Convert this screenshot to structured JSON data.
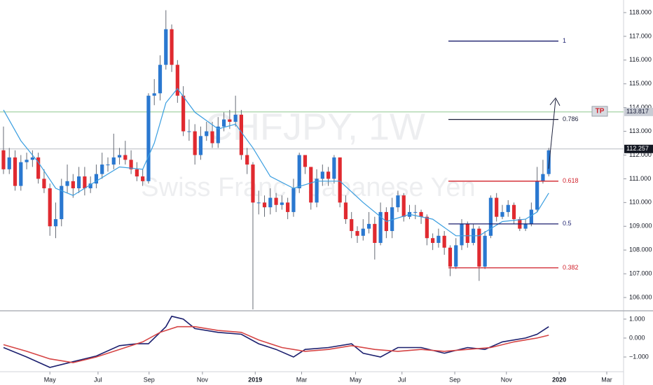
{
  "chart_data": [
    {
      "type": "candlestick",
      "title": "CHFJPY, 1W",
      "subtitle": "Swiss Franc / Japanese Yen",
      "x": [
        0,
        1,
        2,
        3,
        4,
        5,
        6,
        7,
        8,
        9,
        10,
        11,
        12,
        13,
        14,
        15,
        16,
        17,
        18,
        19,
        20,
        21,
        22,
        23,
        24,
        25,
        26,
        27,
        28,
        29,
        30,
        31,
        32,
        33,
        34,
        35,
        36,
        37,
        38,
        39,
        40,
        41,
        42,
        43,
        44,
        45,
        46,
        47,
        48,
        49,
        50,
        51,
        52,
        53,
        54,
        55,
        56,
        57,
        58,
        59,
        60,
        61,
        62,
        63,
        64,
        65,
        66,
        67,
        68,
        69,
        70,
        71,
        72,
        73,
        74,
        75,
        76,
        77,
        78,
        79,
        80,
        81,
        82,
        83,
        84,
        85,
        86,
        87,
        88,
        89,
        90,
        91,
        92,
        93,
        94
      ],
      "open": [
        112.2,
        111.4,
        111.9,
        110.7,
        111.7,
        111.8,
        111.9,
        111.0,
        110.6,
        109.0,
        109.3,
        110.7,
        110.9,
        110.6,
        111.1,
        110.6,
        110.8,
        111.2,
        111.6,
        111.6,
        111.9,
        112.0,
        111.8,
        111.4,
        111.1,
        110.9,
        114.5,
        114.6,
        115.8,
        117.3,
        115.8,
        114.5,
        113.0,
        113.0,
        112.0,
        112.8,
        113.0,
        112.5,
        113.2,
        113.5,
        113.4,
        113.7,
        112.0,
        111.6,
        110.0,
        110.0,
        109.8,
        110.2,
        109.9,
        110.0,
        109.6,
        110.6,
        112.0,
        111.5,
        110.0,
        111.0,
        111.3,
        111.0,
        111.9,
        110.0,
        109.3,
        108.8,
        108.6,
        108.9,
        109.1,
        108.3,
        109.6,
        108.8,
        109.8,
        110.3,
        109.4,
        109.6,
        109.6,
        109.4,
        108.5,
        108.3,
        108.6,
        108.1,
        107.3,
        108.2,
        109.1,
        108.3,
        108.9,
        107.3,
        108.6,
        110.2,
        109.4,
        109.6,
        109.9,
        109.3,
        108.9,
        109.1,
        109.7,
        110.9,
        111.2
      ],
      "high": [
        113.2,
        112.3,
        112.2,
        112.0,
        112.1,
        112.2,
        112.1,
        111.4,
        110.8,
        110.0,
        111.0,
        111.6,
        111.2,
        111.5,
        111.5,
        111.1,
        111.6,
        112.1,
        111.9,
        112.9,
        112.3,
        112.6,
        112.2,
        111.7,
        111.4,
        114.6,
        115.2,
        116.2,
        118.1,
        117.5,
        116.0,
        114.9,
        113.5,
        113.3,
        113.2,
        113.4,
        113.4,
        113.6,
        113.8,
        113.9,
        114.5,
        113.9,
        112.3,
        111.7,
        110.5,
        110.3,
        110.6,
        110.4,
        110.3,
        110.2,
        111.0,
        112.1,
        112.0,
        111.5,
        111.4,
        111.6,
        111.5,
        112.0,
        111.9,
        110.3,
        109.6,
        109.0,
        109.3,
        109.6,
        109.4,
        110.0,
        109.8,
        110.2,
        110.5,
        110.4,
        109.9,
        109.9,
        109.7,
        109.5,
        108.7,
        108.9,
        108.8,
        108.2,
        108.5,
        109.3,
        109.2,
        109.1,
        109.0,
        108.8,
        110.3,
        110.4,
        109.9,
        110.1,
        110.0,
        109.4,
        109.3,
        110.0,
        111.5,
        111.8,
        112.3
      ],
      "low": [
        111.2,
        111.2,
        110.5,
        110.5,
        111.4,
        111.5,
        110.8,
        110.4,
        108.6,
        108.5,
        109.0,
        110.4,
        110.2,
        110.4,
        110.3,
        110.4,
        110.6,
        111.0,
        111.3,
        111.4,
        111.6,
        111.6,
        111.2,
        110.9,
        110.7,
        110.8,
        114.1,
        114.3,
        115.6,
        115.5,
        114.2,
        112.8,
        112.6,
        111.6,
        111.8,
        112.6,
        112.3,
        112.3,
        113.0,
        113.1,
        113.2,
        111.8,
        111.2,
        105.5,
        109.5,
        109.4,
        109.5,
        109.6,
        109.7,
        109.3,
        109.4,
        110.4,
        111.2,
        109.7,
        109.8,
        110.7,
        110.7,
        110.8,
        109.8,
        109.1,
        108.5,
        108.3,
        108.4,
        108.7,
        107.6,
        108.2,
        108.5,
        108.5,
        109.6,
        109.2,
        109.3,
        109.3,
        109.1,
        108.2,
        108.0,
        108.1,
        107.8,
        106.9,
        107.2,
        108.0,
        108.1,
        108.2,
        106.7,
        107.2,
        108.5,
        109.2,
        109.3,
        109.4,
        109.1,
        108.8,
        108.8,
        109.0,
        109.6,
        110.8,
        111.1
      ],
      "close": [
        111.4,
        111.9,
        110.7,
        111.7,
        111.8,
        111.9,
        111.0,
        110.6,
        109.0,
        109.3,
        110.7,
        110.9,
        110.6,
        111.1,
        110.6,
        110.8,
        111.2,
        111.6,
        111.6,
        111.9,
        112.0,
        111.8,
        111.4,
        111.1,
        110.9,
        114.5,
        114.6,
        115.8,
        117.3,
        115.8,
        114.5,
        113.0,
        113.0,
        112.0,
        112.8,
        113.0,
        112.5,
        113.2,
        113.5,
        113.4,
        113.7,
        112.0,
        111.6,
        110.0,
        110.0,
        109.8,
        110.2,
        109.9,
        110.0,
        109.6,
        110.6,
        112.0,
        111.5,
        110.0,
        111.0,
        111.3,
        111.0,
        111.9,
        110.0,
        109.3,
        108.8,
        108.6,
        108.9,
        109.1,
        108.3,
        109.6,
        108.8,
        109.8,
        110.3,
        109.4,
        109.6,
        109.6,
        109.4,
        108.5,
        108.3,
        108.6,
        108.1,
        107.3,
        108.2,
        109.1,
        108.3,
        108.9,
        107.3,
        108.6,
        110.2,
        109.4,
        109.6,
        109.9,
        109.3,
        108.9,
        109.1,
        109.7,
        110.9,
        111.2,
        112.2
      ],
      "up_color": "#2a78d0",
      "down_color": "#e02a30",
      "series": [
        {
          "color": "#3a9ee0",
          "x": [
            0,
            3,
            6,
            9,
            12,
            16,
            20,
            24,
            26,
            28,
            30,
            33,
            37,
            40,
            43,
            46,
            50,
            54,
            58,
            62,
            66,
            70,
            74,
            78,
            82,
            86,
            90,
            92,
            94
          ],
          "values": [
            113.9,
            112.6,
            111.7,
            110.6,
            110.3,
            110.9,
            111.5,
            111.4,
            112.5,
            114.2,
            114.8,
            113.8,
            113.1,
            113.3,
            112.3,
            111.1,
            110.6,
            110.9,
            110.9,
            110.0,
            109.2,
            109.5,
            109.3,
            108.6,
            108.6,
            109.2,
            109.3,
            109.6,
            110.4
          ]
        }
      ],
      "xlim": [
        -0.6,
        106.9
      ],
      "ylim": [
        105.47,
        118.53
      ],
      "yticks": [
        {
          "value": 106,
          "label": "106.000"
        },
        {
          "value": 107,
          "label": "107.000"
        },
        {
          "value": 108,
          "label": "108.000"
        },
        {
          "value": 109,
          "label": "109.000"
        },
        {
          "value": 110,
          "label": "110.000"
        },
        {
          "value": 111,
          "label": "111.000"
        },
        {
          "value": 112,
          "label": "112.000"
        },
        {
          "value": 113,
          "label": "113.000"
        },
        {
          "value": 114,
          "label": "114.000"
        },
        {
          "value": 115,
          "label": "115.000"
        },
        {
          "value": 116,
          "label": "116.000"
        },
        {
          "value": 117,
          "label": "117.000"
        },
        {
          "value": 118,
          "label": "118.000"
        }
      ],
      "hlines": [
        {
          "value": 113.817,
          "label": "113.817",
          "color": "#8cc88c",
          "badge": "#c8ccd4",
          "text_color": "#1b1f3a"
        },
        {
          "value": 112.257,
          "label": "112.257",
          "color": "#b8bbc4",
          "badge": "#131722",
          "text_color": "#ffffff"
        }
      ],
      "fib": [
        {
          "value": 116.8,
          "label": "1",
          "color": "#1b1f6e"
        },
        {
          "value": 113.5,
          "label": "0.786",
          "color": "#1b1f3a"
        },
        {
          "value": 110.9,
          "label": "0.618",
          "color": "#d0202a"
        },
        {
          "value": 109.1,
          "label": "0.5",
          "color": "#1b1f6e"
        },
        {
          "value": 107.25,
          "label": "0.382",
          "color": "#d0202a"
        }
      ],
      "tp": "TP"
    },
    {
      "type": "line",
      "xlim": [
        -0.6,
        106.9
      ],
      "ylim": [
        -1.74,
        1.44
      ],
      "yticks": [
        {
          "value": 1,
          "label": "1.000"
        },
        {
          "value": 0,
          "label": "0.000"
        },
        {
          "value": -1,
          "label": "−1.000"
        }
      ],
      "series": [
        {
          "color": "#1b1f6e",
          "x": [
            0,
            4,
            8,
            12,
            16,
            20,
            23,
            25,
            28,
            29,
            31,
            33,
            37,
            41,
            44,
            47,
            50,
            52,
            56,
            60,
            62,
            65,
            68,
            72,
            76,
            80,
            83,
            86,
            90,
            92,
            94
          ],
          "values": [
            -0.5,
            -1.0,
            -1.55,
            -1.25,
            -0.95,
            -0.4,
            -0.3,
            -0.3,
            0.6,
            1.15,
            1.0,
            0.5,
            0.3,
            0.2,
            -0.3,
            -0.6,
            -1.0,
            -0.6,
            -0.5,
            -0.3,
            -0.8,
            -1.0,
            -0.5,
            -0.5,
            -0.8,
            -0.5,
            -0.6,
            -0.2,
            0.0,
            0.2,
            0.6
          ]
        },
        {
          "color": "#d64545",
          "x": [
            0,
            4,
            8,
            12,
            16,
            20,
            24,
            27,
            30,
            33,
            37,
            41,
            44,
            48,
            52,
            56,
            60,
            64,
            68,
            72,
            76,
            80,
            84,
            88,
            92,
            94
          ],
          "values": [
            -0.35,
            -0.7,
            -1.1,
            -1.3,
            -1.0,
            -0.6,
            -0.2,
            0.3,
            0.6,
            0.6,
            0.4,
            0.3,
            -0.1,
            -0.5,
            -0.7,
            -0.6,
            -0.4,
            -0.6,
            -0.7,
            -0.6,
            -0.7,
            -0.6,
            -0.5,
            -0.2,
            0.0,
            0.15
          ]
        }
      ],
      "xticks": [
        {
          "value": 8,
          "label": "May"
        },
        {
          "value": 16.3,
          "label": "Jul"
        },
        {
          "value": 25.1,
          "label": "Sep"
        },
        {
          "value": 34.3,
          "label": "Nov"
        },
        {
          "value": 43.4,
          "label": "2019"
        },
        {
          "value": 51.4,
          "label": "Mar"
        },
        {
          "value": 60.7,
          "label": "May"
        },
        {
          "value": 68.7,
          "label": "Jul"
        },
        {
          "value": 77.8,
          "label": "Sep"
        },
        {
          "value": 86.7,
          "label": "Nov"
        },
        {
          "value": 95.8,
          "label": "2020"
        },
        {
          "value": 104,
          "label": "Mar"
        }
      ]
    }
  ]
}
